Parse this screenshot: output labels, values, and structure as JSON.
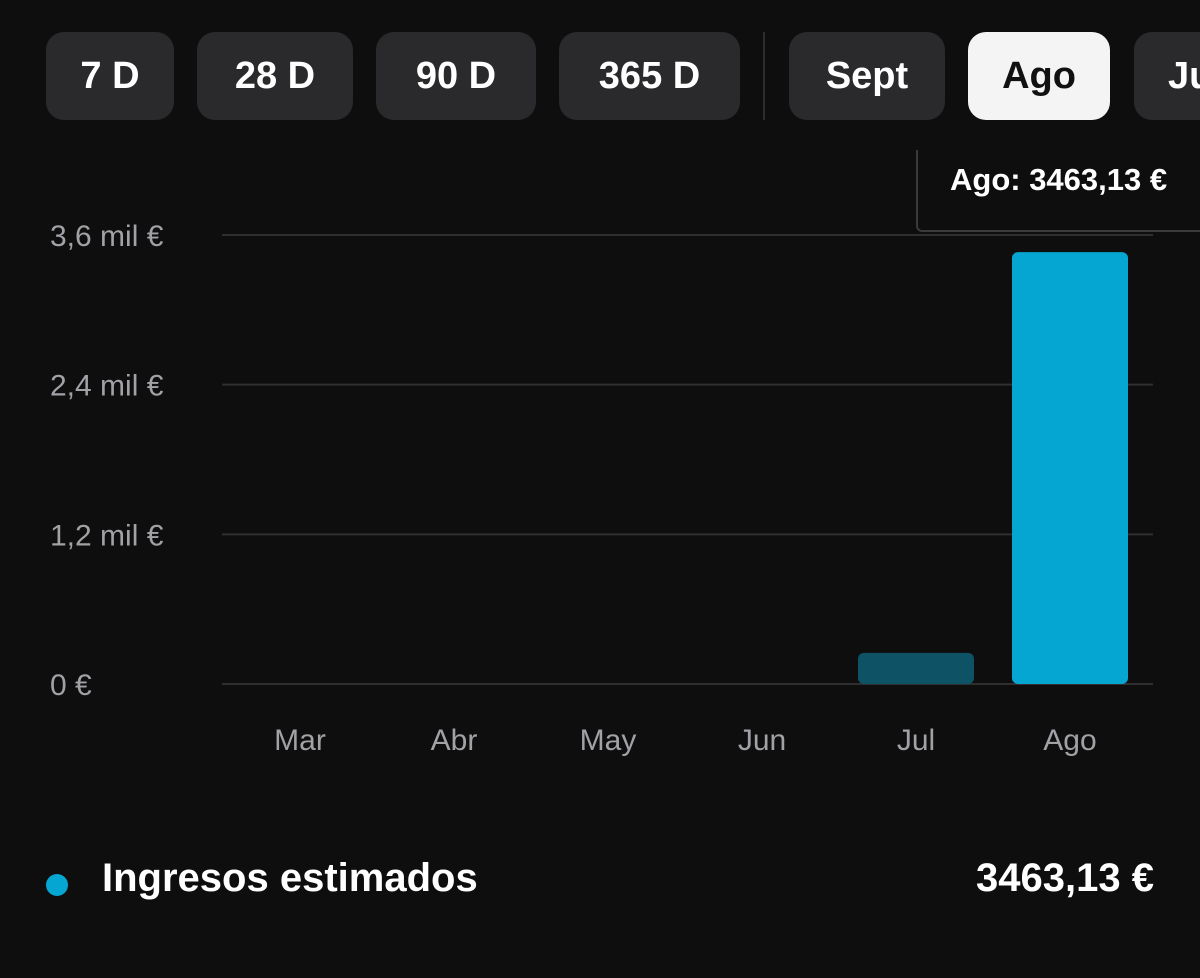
{
  "range_filters": [
    {
      "label": "7 D",
      "selected": false
    },
    {
      "label": "28 D",
      "selected": false
    },
    {
      "label": "90 D",
      "selected": false
    },
    {
      "label": "365 D",
      "selected": false
    }
  ],
  "month_filters": [
    {
      "label": "Sept",
      "selected": false
    },
    {
      "label": "Ago",
      "selected": true
    },
    {
      "label": "Ju",
      "selected": false
    }
  ],
  "tooltip": {
    "text": "Ago: 3463,13 €"
  },
  "colors": {
    "accent": "#06a6d3",
    "bar_dim": "#0e5266",
    "gridline": "#2f2f31",
    "background": "#0e0e0f",
    "pill": "#2a2a2c",
    "pill_selected": "#f4f4f5"
  },
  "chart_data": {
    "type": "bar",
    "categories": [
      "Mar",
      "Abr",
      "May",
      "Jun",
      "Jul",
      "Ago"
    ],
    "values": [
      0,
      0,
      0,
      0,
      250,
      3463.13
    ],
    "highlighted_category": "Ago",
    "ylim": [
      0,
      3600
    ],
    "yticks": [
      {
        "value": 0,
        "label": "0 €"
      },
      {
        "value": 1200,
        "label": "1,2 mil €"
      },
      {
        "value": 2400,
        "label": "2,4 mil €"
      },
      {
        "value": 3600,
        "label": "3,6 mil €"
      }
    ],
    "grid": true,
    "series": [
      {
        "name": "Ingresos estimados",
        "values": [
          0,
          0,
          0,
          0,
          250,
          3463.13
        ]
      }
    ]
  },
  "legend": {
    "label": "Ingresos estimados",
    "value": "3463,13 €"
  }
}
